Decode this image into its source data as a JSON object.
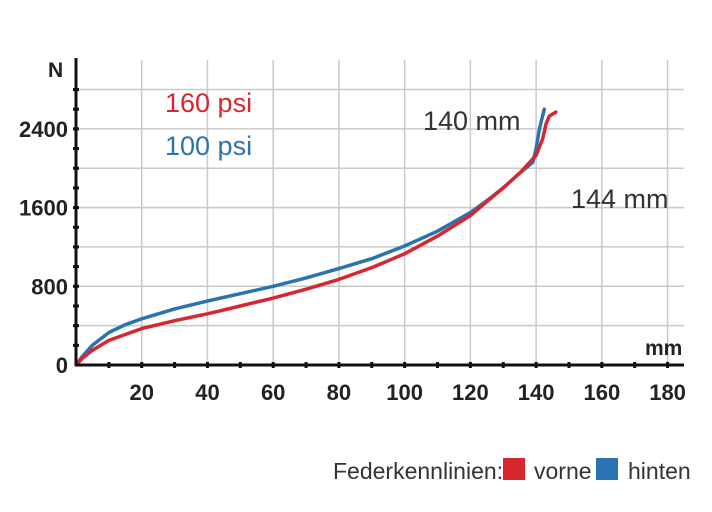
{
  "chart_data": {
    "type": "line",
    "title": "",
    "xlabel": "mm",
    "ylabel": "N",
    "xlim": [
      0,
      185
    ],
    "ylim": [
      0,
      3100
    ],
    "x_ticks": [
      20,
      40,
      60,
      80,
      100,
      120,
      140,
      160,
      180
    ],
    "y_ticks": [
      0,
      800,
      1600,
      2400
    ],
    "grid": true,
    "colors": {
      "front": "#d8262f",
      "rear": "#2b72b0",
      "grid": "#c9c9c9",
      "axis": "#111111"
    },
    "labels": {
      "pressure_front": "160 psi",
      "pressure_rear": "100 psi",
      "travel_rear": "140 mm",
      "travel_front": "144 mm"
    },
    "legend": {
      "title": "Federkennlinien:",
      "position": "bottom-right",
      "items": [
        {
          "name": "vorne",
          "color": "#d8262f"
        },
        {
          "name": "hinten",
          "color": "#2b72b0"
        }
      ]
    },
    "series": [
      {
        "name": "hinten",
        "color": "#2b72b0",
        "x": [
          0,
          2,
          5,
          10,
          15,
          20,
          30,
          40,
          50,
          60,
          70,
          80,
          90,
          100,
          110,
          120,
          125,
          130,
          135,
          139,
          140,
          141,
          142.5
        ],
        "y": [
          0,
          90,
          200,
          330,
          410,
          470,
          570,
          650,
          725,
          800,
          885,
          980,
          1080,
          1210,
          1360,
          1550,
          1670,
          1800,
          1950,
          2060,
          2200,
          2400,
          2600
        ]
      },
      {
        "name": "vorne",
        "color": "#d8262f",
        "x": [
          0,
          2,
          5,
          10,
          15,
          20,
          30,
          40,
          50,
          60,
          70,
          80,
          90,
          100,
          110,
          120,
          125,
          130,
          135,
          140,
          142,
          143,
          144,
          146
        ],
        "y": [
          0,
          70,
          150,
          250,
          310,
          370,
          450,
          520,
          600,
          680,
          770,
          870,
          990,
          1130,
          1310,
          1520,
          1660,
          1800,
          1950,
          2130,
          2300,
          2450,
          2530,
          2570
        ]
      }
    ]
  }
}
